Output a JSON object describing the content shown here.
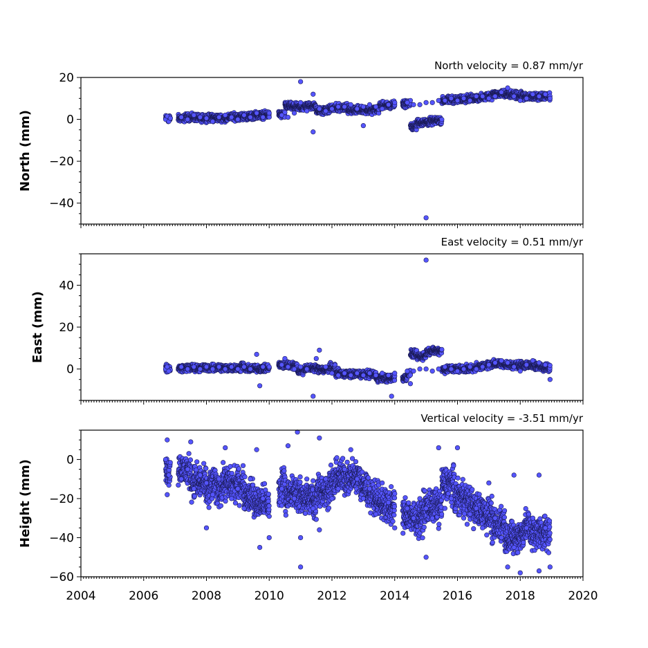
{
  "chart_data": [
    {
      "type": "scatter",
      "title": "North velocity = 0.87 mm/yr",
      "ylabel": "North (mm)",
      "xlim": [
        2004,
        2020
      ],
      "ylim": [
        -50,
        20
      ],
      "yticks": [
        20,
        0,
        -20,
        -40
      ],
      "ytick_labels": [
        "20",
        "0",
        "−20",
        "−40"
      ],
      "marker_color": "#5555ff",
      "series": [
        {
          "points": [
            [
              2006.7,
              0
            ],
            [
              2006.75,
              1.5
            ],
            [
              2006.8,
              -1
            ],
            [
              2006.85,
              0.5
            ],
            [
              2007.2,
              1
            ],
            [
              2007.4,
              0
            ],
            [
              2007.6,
              2
            ],
            [
              2007.8,
              1
            ],
            [
              2008.0,
              0.5
            ],
            [
              2008.2,
              -1
            ],
            [
              2008.4,
              1
            ],
            [
              2008.6,
              2
            ],
            [
              2008.8,
              1
            ],
            [
              2009.0,
              0
            ],
            [
              2009.2,
              2
            ],
            [
              2009.4,
              1
            ],
            [
              2009.6,
              3
            ],
            [
              2009.8,
              1
            ],
            [
              2010.0,
              3
            ],
            [
              2010.4,
              2
            ],
            [
              2010.6,
              1
            ],
            [
              2010.8,
              3
            ],
            [
              2011.0,
              18
            ],
            [
              2011.0,
              8
            ],
            [
              2011.2,
              4
            ],
            [
              2011.4,
              12
            ],
            [
              2011.4,
              -6
            ],
            [
              2011.6,
              5
            ],
            [
              2011.8,
              4
            ],
            [
              2012.0,
              5
            ],
            [
              2012.2,
              6
            ],
            [
              2012.4,
              6
            ],
            [
              2012.6,
              7
            ],
            [
              2012.8,
              5
            ],
            [
              2013.0,
              -3
            ],
            [
              2013.0,
              6
            ],
            [
              2013.2,
              7
            ],
            [
              2013.4,
              6
            ],
            [
              2013.6,
              5
            ],
            [
              2013.8,
              7
            ],
            [
              2014.0,
              8
            ],
            [
              2014.4,
              8
            ],
            [
              2014.6,
              7
            ],
            [
              2014.8,
              7
            ],
            [
              2015.0,
              -47
            ],
            [
              2015.0,
              8
            ],
            [
              2015.2,
              8
            ],
            [
              2015.4,
              9
            ],
            [
              2015.6,
              9
            ],
            [
              2015.8,
              10
            ],
            [
              2016.0,
              9
            ],
            [
              2016.2,
              10
            ],
            [
              2016.4,
              9
            ],
            [
              2016.6,
              11
            ],
            [
              2016.8,
              11
            ],
            [
              2017.0,
              10
            ],
            [
              2017.2,
              11
            ],
            [
              2017.4,
              13
            ],
            [
              2017.6,
              15
            ],
            [
              2017.8,
              11
            ],
            [
              2018.0,
              9
            ],
            [
              2018.2,
              10
            ],
            [
              2018.4,
              12
            ],
            [
              2018.6,
              11
            ],
            [
              2018.8,
              12
            ],
            [
              2018.95,
              10
            ]
          ]
        }
      ]
    },
    {
      "type": "scatter",
      "title": "East velocity = 0.51 mm/yr",
      "ylabel": "East (mm)",
      "xlim": [
        2004,
        2020
      ],
      "ylim": [
        -15,
        55
      ],
      "yticks": [
        40,
        20,
        0
      ],
      "ytick_labels": [
        "40",
        "20",
        "0"
      ],
      "marker_color": "#5555ff",
      "series": [
        {
          "points": [
            [
              2006.7,
              0
            ],
            [
              2006.75,
              1
            ],
            [
              2006.8,
              -1
            ],
            [
              2007.2,
              1
            ],
            [
              2007.4,
              0
            ],
            [
              2007.6,
              1
            ],
            [
              2007.8,
              0
            ],
            [
              2008.0,
              1
            ],
            [
              2008.2,
              0
            ],
            [
              2008.4,
              1
            ],
            [
              2008.6,
              0
            ],
            [
              2008.8,
              1
            ],
            [
              2009.0,
              0
            ],
            [
              2009.2,
              1
            ],
            [
              2009.4,
              0
            ],
            [
              2009.6,
              7
            ],
            [
              2009.7,
              -8
            ],
            [
              2009.8,
              1
            ],
            [
              2010.0,
              1
            ],
            [
              2010.4,
              2
            ],
            [
              2010.5,
              5
            ],
            [
              2010.6,
              1
            ],
            [
              2010.8,
              0
            ],
            [
              2011.0,
              1
            ],
            [
              2011.2,
              0
            ],
            [
              2011.4,
              -13
            ],
            [
              2011.5,
              5
            ],
            [
              2011.6,
              9
            ],
            [
              2011.8,
              1
            ],
            [
              2012.0,
              -2
            ],
            [
              2012.2,
              -3
            ],
            [
              2012.4,
              -2
            ],
            [
              2012.6,
              -3
            ],
            [
              2012.8,
              -2
            ],
            [
              2013.0,
              -3
            ],
            [
              2013.2,
              -2
            ],
            [
              2013.4,
              -3
            ],
            [
              2013.6,
              -2
            ],
            [
              2013.8,
              -3
            ],
            [
              2013.9,
              -13
            ],
            [
              2014.0,
              -2
            ],
            [
              2014.4,
              -1
            ],
            [
              2014.5,
              -7
            ],
            [
              2014.6,
              -1
            ],
            [
              2014.8,
              0
            ],
            [
              2015.0,
              52
            ],
            [
              2015.0,
              0
            ],
            [
              2015.2,
              -1
            ],
            [
              2015.4,
              0
            ],
            [
              2015.6,
              1
            ],
            [
              2015.8,
              0
            ],
            [
              2016.0,
              -1
            ],
            [
              2016.2,
              0
            ],
            [
              2016.4,
              1
            ],
            [
              2016.6,
              0
            ],
            [
              2016.8,
              1
            ],
            [
              2017.0,
              2
            ],
            [
              2017.2,
              3
            ],
            [
              2017.4,
              4
            ],
            [
              2017.6,
              3
            ],
            [
              2017.8,
              1
            ],
            [
              2018.0,
              -1
            ],
            [
              2018.2,
              2
            ],
            [
              2018.4,
              4
            ],
            [
              2018.6,
              3
            ],
            [
              2018.8,
              2
            ],
            [
              2018.95,
              -5
            ]
          ]
        }
      ]
    },
    {
      "type": "scatter",
      "title": "Vertical velocity = -3.51 mm/yr",
      "ylabel": "Height (mm)",
      "xlim": [
        2004,
        2020
      ],
      "ylim": [
        -60,
        15
      ],
      "yticks": [
        0,
        -20,
        -40,
        -60
      ],
      "ytick_labels": [
        "0",
        "−20",
        "−40",
        "−60"
      ],
      "marker_color": "#5555ff",
      "series": [
        {
          "points": [
            [
              2006.7,
              0
            ],
            [
              2006.75,
              10
            ],
            [
              2006.8,
              -8
            ],
            [
              2006.75,
              -18
            ],
            [
              2007.2,
              -10
            ],
            [
              2007.4,
              -5
            ],
            [
              2007.5,
              9
            ],
            [
              2007.6,
              -15
            ],
            [
              2007.8,
              -8
            ],
            [
              2008.0,
              -35
            ],
            [
              2008.0,
              -12
            ],
            [
              2008.2,
              -18
            ],
            [
              2008.4,
              -10
            ],
            [
              2008.6,
              6
            ],
            [
              2008.8,
              -20
            ],
            [
              2009.0,
              -15
            ],
            [
              2009.2,
              -25
            ],
            [
              2009.4,
              -10
            ],
            [
              2009.6,
              5
            ],
            [
              2009.7,
              -45
            ],
            [
              2009.8,
              -20
            ],
            [
              2010.0,
              -40
            ],
            [
              2010.4,
              -15
            ],
            [
              2010.6,
              7
            ],
            [
              2010.8,
              -20
            ],
            [
              2010.9,
              14
            ],
            [
              2011.0,
              -55
            ],
            [
              2011.0,
              -40
            ],
            [
              2011.2,
              -10
            ],
            [
              2011.4,
              -25
            ],
            [
              2011.6,
              11
            ],
            [
              2011.6,
              -36
            ],
            [
              2011.8,
              -10
            ],
            [
              2012.0,
              -20
            ],
            [
              2012.2,
              -15
            ],
            [
              2012.4,
              -5
            ],
            [
              2012.6,
              5
            ],
            [
              2012.8,
              -10
            ],
            [
              2013.0,
              -20
            ],
            [
              2013.2,
              -15
            ],
            [
              2013.4,
              -28
            ],
            [
              2013.6,
              -12
            ],
            [
              2013.8,
              -22
            ],
            [
              2014.0,
              -35
            ],
            [
              2014.4,
              -25
            ],
            [
              2014.6,
              -30
            ],
            [
              2014.8,
              -20
            ],
            [
              2015.0,
              -50
            ],
            [
              2015.0,
              -25
            ],
            [
              2015.2,
              -30
            ],
            [
              2015.4,
              6
            ],
            [
              2015.6,
              -25
            ],
            [
              2015.8,
              -20
            ],
            [
              2016.0,
              6
            ],
            [
              2016.2,
              -30
            ],
            [
              2016.4,
              -28
            ],
            [
              2016.6,
              -25
            ],
            [
              2016.8,
              -35
            ],
            [
              2017.0,
              -12
            ],
            [
              2017.2,
              -30
            ],
            [
              2017.4,
              -40
            ],
            [
              2017.6,
              -55
            ],
            [
              2017.8,
              -45
            ],
            [
              2017.8,
              -8
            ],
            [
              2018.0,
              -58
            ],
            [
              2018.2,
              -35
            ],
            [
              2018.4,
              -30
            ],
            [
              2018.6,
              -8
            ],
            [
              2018.6,
              -57
            ],
            [
              2018.8,
              -35
            ],
            [
              2018.95,
              -55
            ]
          ]
        }
      ]
    }
  ],
  "x_axis": {
    "ticks": [
      2004,
      2006,
      2008,
      2010,
      2012,
      2014,
      2016,
      2018,
      2020
    ],
    "tick_labels": [
      "2004",
      "2006",
      "2008",
      "2010",
      "2012",
      "2014",
      "2016",
      "2018",
      "2020"
    ]
  }
}
